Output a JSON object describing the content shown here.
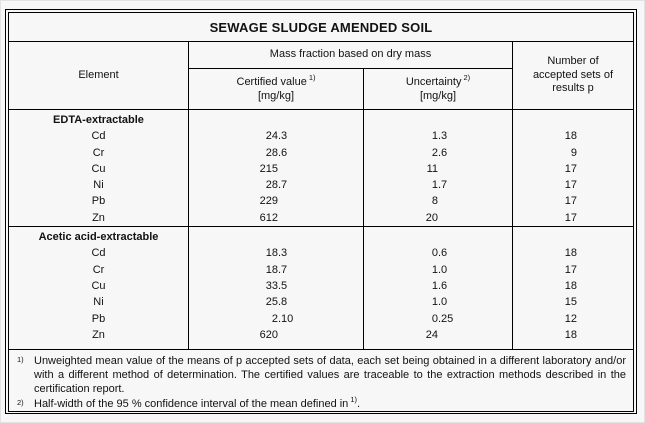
{
  "title": "SEWAGE SLUDGE AMENDED SOIL",
  "header": {
    "element": "Element",
    "mass_fraction": "Mass fraction based on dry mass",
    "certified_label": "Certified value",
    "certified_note": "1)",
    "certified_unit": "[mg/kg]",
    "uncertainty_label": "Uncertainty",
    "uncertainty_note": "2)",
    "uncertainty_unit": "[mg/kg]",
    "accepted_sets": "Number of accepted sets of results p"
  },
  "table": {
    "sections": [
      {
        "name": "EDTA-extractable",
        "rows": [
          {
            "element": "Cd",
            "certified": "24.3",
            "uncertainty": "1.3",
            "p": "18"
          },
          {
            "element": "Cr",
            "certified": "28.6",
            "uncertainty": "2.6",
            "p": "9"
          },
          {
            "element": "Cu",
            "certified": "215",
            "uncertainty": "11",
            "p": "17"
          },
          {
            "element": "Ni",
            "certified": "28.7",
            "uncertainty": "1.7",
            "p": "17"
          },
          {
            "element": "Pb",
            "certified": "229",
            "uncertainty": "8",
            "p": "17"
          },
          {
            "element": "Zn",
            "certified": "612",
            "uncertainty": "20",
            "p": "17"
          }
        ]
      },
      {
        "name": "Acetic acid-extractable",
        "rows": [
          {
            "element": "Cd",
            "certified": "18.3",
            "uncertainty": "0.6",
            "p": "18"
          },
          {
            "element": "Cr",
            "certified": "18.7",
            "uncertainty": "1.0",
            "p": "17"
          },
          {
            "element": "Cu",
            "certified": "33.5",
            "uncertainty": "1.6",
            "p": "18"
          },
          {
            "element": "Ni",
            "certified": "25.8",
            "uncertainty": "1.0",
            "p": "15"
          },
          {
            "element": "Pb",
            "certified": "2.10",
            "uncertainty": "0.25",
            "p": "12"
          },
          {
            "element": "Zn",
            "certified": "620",
            "uncertainty": "24",
            "p": "18"
          }
        ]
      }
    ]
  },
  "footnotes": [
    {
      "marker": "1)",
      "text": "Unweighted mean value of the means of p accepted sets of data, each set being obtained in a different laboratory and/or with a different method of determination. The certified values are traceable to the extraction methods described in the certification report."
    },
    {
      "marker": "2)",
      "text": "Half-width of the 95 % confidence interval of the mean defined in",
      "ref": "1)",
      "suffix": "."
    }
  ],
  "colors": {
    "border": "#000000",
    "background": "#f7f7f7",
    "text": "#121212"
  }
}
